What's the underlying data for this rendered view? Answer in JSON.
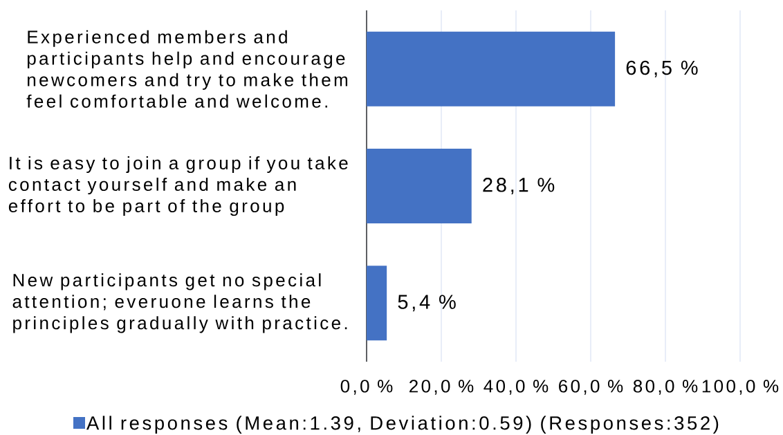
{
  "chart_data": {
    "type": "bar",
    "orientation": "horizontal",
    "categories": [
      "Experienced members and participants help and encourage newcomers and try to make them feel comfortable and welcome.",
      "It is easy to join a group if you take contact yourself and make an effort to be part of the group",
      "New participants get no special attention; everuone learns the principles gradually with practice."
    ],
    "series": [
      {
        "name": "All responses (Mean:1.39, Deviation:0.59) (Responses:352)",
        "color": "#4472c4",
        "values": [
          66.5,
          28.1,
          5.4
        ],
        "value_labels": [
          "66,5 %",
          "28,1 %",
          "5,4 %"
        ]
      }
    ],
    "xlim": [
      0,
      100
    ],
    "xticks": [
      {
        "value": 0,
        "label": "0,0 %"
      },
      {
        "value": 20,
        "label": "20,0 %"
      },
      {
        "value": 40,
        "label": "40,0 %"
      },
      {
        "value": 60,
        "label": "60,0 %"
      },
      {
        "value": 80,
        "label": "80,0 %"
      },
      {
        "value": 100,
        "label": "100,0 %"
      }
    ],
    "grid": "x",
    "legend": "bottom"
  }
}
